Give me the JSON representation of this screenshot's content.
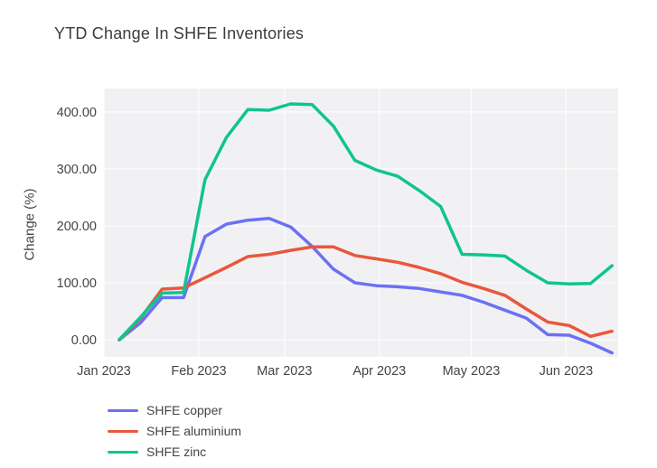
{
  "chart_data": {
    "type": "line",
    "title": "YTD Change In SHFE Inventories",
    "ylabel": "Change (%)",
    "xlabel": "",
    "grid": true,
    "legend_position": "bottom-left",
    "ylim": [
      -30,
      441
    ],
    "xlim_days": [
      0,
      168
    ],
    "y_ticks": [
      {
        "value": 0,
        "label": "0.00"
      },
      {
        "value": 100,
        "label": "100.00"
      },
      {
        "value": 200,
        "label": "200.00"
      },
      {
        "value": 300,
        "label": "300.00"
      },
      {
        "value": 400,
        "label": "400.00"
      }
    ],
    "x_ticks": [
      {
        "day": 0,
        "label": "Jan 2023"
      },
      {
        "day": 31,
        "label": "Feb 2023"
      },
      {
        "day": 59,
        "label": "Mar 2023"
      },
      {
        "day": 90,
        "label": "Apr 2023"
      },
      {
        "day": 120,
        "label": "May 2023"
      },
      {
        "day": 151,
        "label": "Jun 2023"
      }
    ],
    "x_dates": [
      "2023-01-06",
      "2023-01-13",
      "2023-01-20",
      "2023-01-27",
      "2023-02-03",
      "2023-02-10",
      "2023-02-17",
      "2023-02-24",
      "2023-03-03",
      "2023-03-10",
      "2023-03-17",
      "2023-03-24",
      "2023-03-31",
      "2023-04-07",
      "2023-04-14",
      "2023-04-21",
      "2023-04-28",
      "2023-05-05",
      "2023-05-12",
      "2023-05-19",
      "2023-05-26",
      "2023-06-02",
      "2023-06-09",
      "2023-06-16"
    ],
    "x_days": [
      5,
      12,
      19,
      26,
      33,
      40,
      47,
      54,
      61,
      68,
      75,
      82,
      89,
      96,
      103,
      110,
      117,
      124,
      131,
      138,
      145,
      152,
      159,
      166
    ],
    "series": [
      {
        "name": "SHFE copper",
        "color": "#6c71f2",
        "values": [
          0,
          30,
          74,
          74,
          181,
          203,
          210,
          213,
          198,
          164,
          124,
          100,
          95,
          93,
          90,
          84,
          78,
          66,
          52,
          38,
          9,
          8,
          -6,
          -23
        ]
      },
      {
        "name": "SHFE aluminium",
        "color": "#e9573d",
        "values": [
          0,
          38,
          89,
          91,
          109,
          127,
          146,
          150,
          157,
          163,
          163,
          148,
          142,
          136,
          127,
          116,
          101,
          90,
          78,
          54,
          31,
          25,
          6,
          15
        ]
      },
      {
        "name": "SHFE zinc",
        "color": "#0fc48f",
        "values": [
          0,
          40,
          82,
          83,
          281,
          355,
          404,
          403,
          414,
          413,
          375,
          315,
          298,
          287,
          262,
          234,
          150,
          149,
          147,
          122,
          100,
          98,
          99,
          130
        ]
      }
    ]
  },
  "colors": {
    "paper_bg": "#ffffff",
    "plot_bg": "#f1f1f4",
    "grid": "#ffffff",
    "title_text": "#3b3b3b",
    "tick_text": "#444444"
  }
}
